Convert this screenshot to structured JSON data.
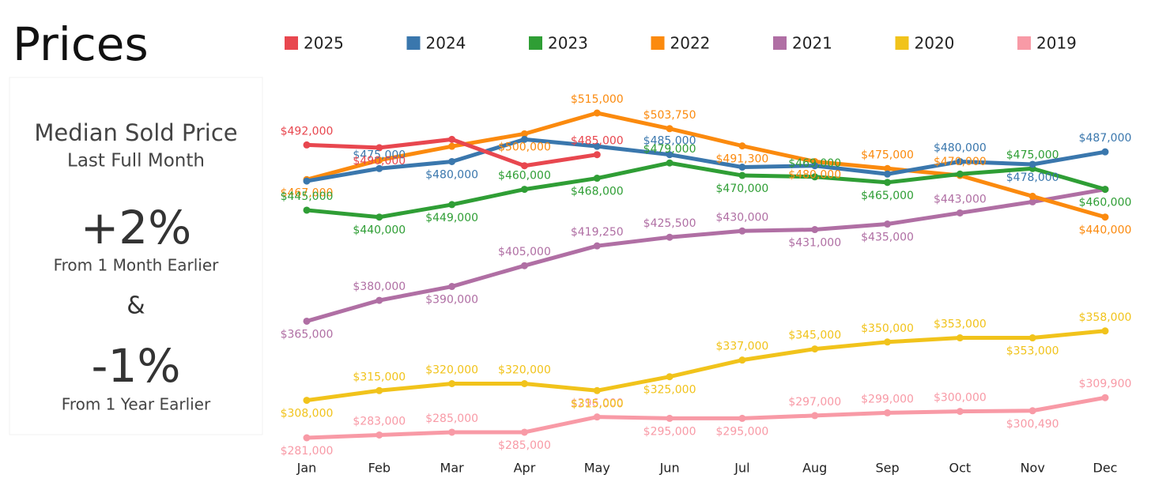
{
  "title": "Prices",
  "summary": {
    "heading": "Median Sold Price",
    "subheading": "Last Full Month",
    "month_change": "+2%",
    "month_caption": "From 1 Month Earlier",
    "joiner": "&",
    "year_change": "-1%",
    "year_caption": "From 1 Year Earlier"
  },
  "chart_data": {
    "type": "line",
    "categories": [
      "Jan",
      "Feb",
      "Mar",
      "Apr",
      "May",
      "Jun",
      "Jul",
      "Aug",
      "Sep",
      "Oct",
      "Nov",
      "Dec"
    ],
    "series": [
      {
        "name": "2025",
        "color": "#e8474f",
        "values": [
          492000,
          490000,
          496000,
          477000,
          485000,
          null,
          null,
          null,
          null,
          null,
          null,
          null
        ],
        "value_labels": [
          "$492,000",
          "$490,000",
          null,
          null,
          "$485,000",
          null,
          null,
          null,
          null,
          null,
          null,
          null
        ]
      },
      {
        "name": "2024",
        "color": "#3a77ad",
        "values": [
          466000,
          475000,
          480000,
          496000,
          491000,
          485000,
          476000,
          477000,
          471000,
          480000,
          478000,
          487000
        ],
        "value_labels": [
          null,
          "$475,000",
          "$480,000",
          null,
          null,
          "$485,000",
          null,
          null,
          null,
          "$480,000",
          "$478,000",
          "$487,000"
        ]
      },
      {
        "name": "2023",
        "color": "#2f9e35",
        "values": [
          445000,
          440000,
          449000,
          460000,
          468000,
          479000,
          470000,
          469000,
          465000,
          471000,
          475000,
          460000
        ],
        "value_labels": [
          "$445,000",
          "$440,000",
          "$449,000",
          "$460,000",
          "$468,000",
          "$479,000",
          "$470,000",
          "$469,000",
          "$465,000",
          null,
          "$475,000",
          "$460,000"
        ]
      },
      {
        "name": "2022",
        "color": "#fb8a0e",
        "values": [
          467000,
          481000,
          491000,
          500000,
          515000,
          503750,
          491300,
          480000,
          475000,
          470000,
          455000,
          440000
        ],
        "value_labels": [
          "$467,000",
          null,
          null,
          "$500,000",
          "$515,000",
          "$503,750",
          "$491,300",
          "$480,000",
          "$475,000",
          "$470,000",
          null,
          "$440,000"
        ]
      },
      {
        "name": "2021",
        "color": "#b06fa4",
        "values": [
          365000,
          380000,
          390000,
          405000,
          419250,
          425500,
          430000,
          431000,
          435000,
          443000,
          451000,
          460000
        ],
        "value_labels": [
          "$365,000",
          "$380,000",
          "$390,000",
          "$405,000",
          "$419,250",
          "$425,500",
          "$430,000",
          "$431,000",
          "$435,000",
          "$443,000",
          null,
          null
        ]
      },
      {
        "name": "2020",
        "color": "#f1c31b",
        "values": [
          308000,
          315000,
          320000,
          320000,
          315000,
          325000,
          337000,
          345000,
          350000,
          353000,
          353000,
          358000
        ],
        "value_labels": [
          "$308,000",
          "$315,000",
          "$320,000",
          "$320,000",
          "$315,000",
          "$325,000",
          "$337,000",
          "$345,000",
          "$350,000",
          "$353,000",
          "$353,000",
          "$358,000"
        ]
      },
      {
        "name": "2019",
        "color": "#f89aa6",
        "values": [
          281000,
          283000,
          285000,
          285000,
          296000,
          295000,
          295000,
          297000,
          299000,
          300000,
          300490,
          309900
        ],
        "value_labels": [
          "$281,000",
          "$283,000",
          "$285,000",
          "$285,000",
          "$296,000",
          "$295,000",
          "$295,000",
          "$297,000",
          "$299,000",
          "$300,000",
          "$300,490",
          "$309,900"
        ]
      }
    ]
  }
}
